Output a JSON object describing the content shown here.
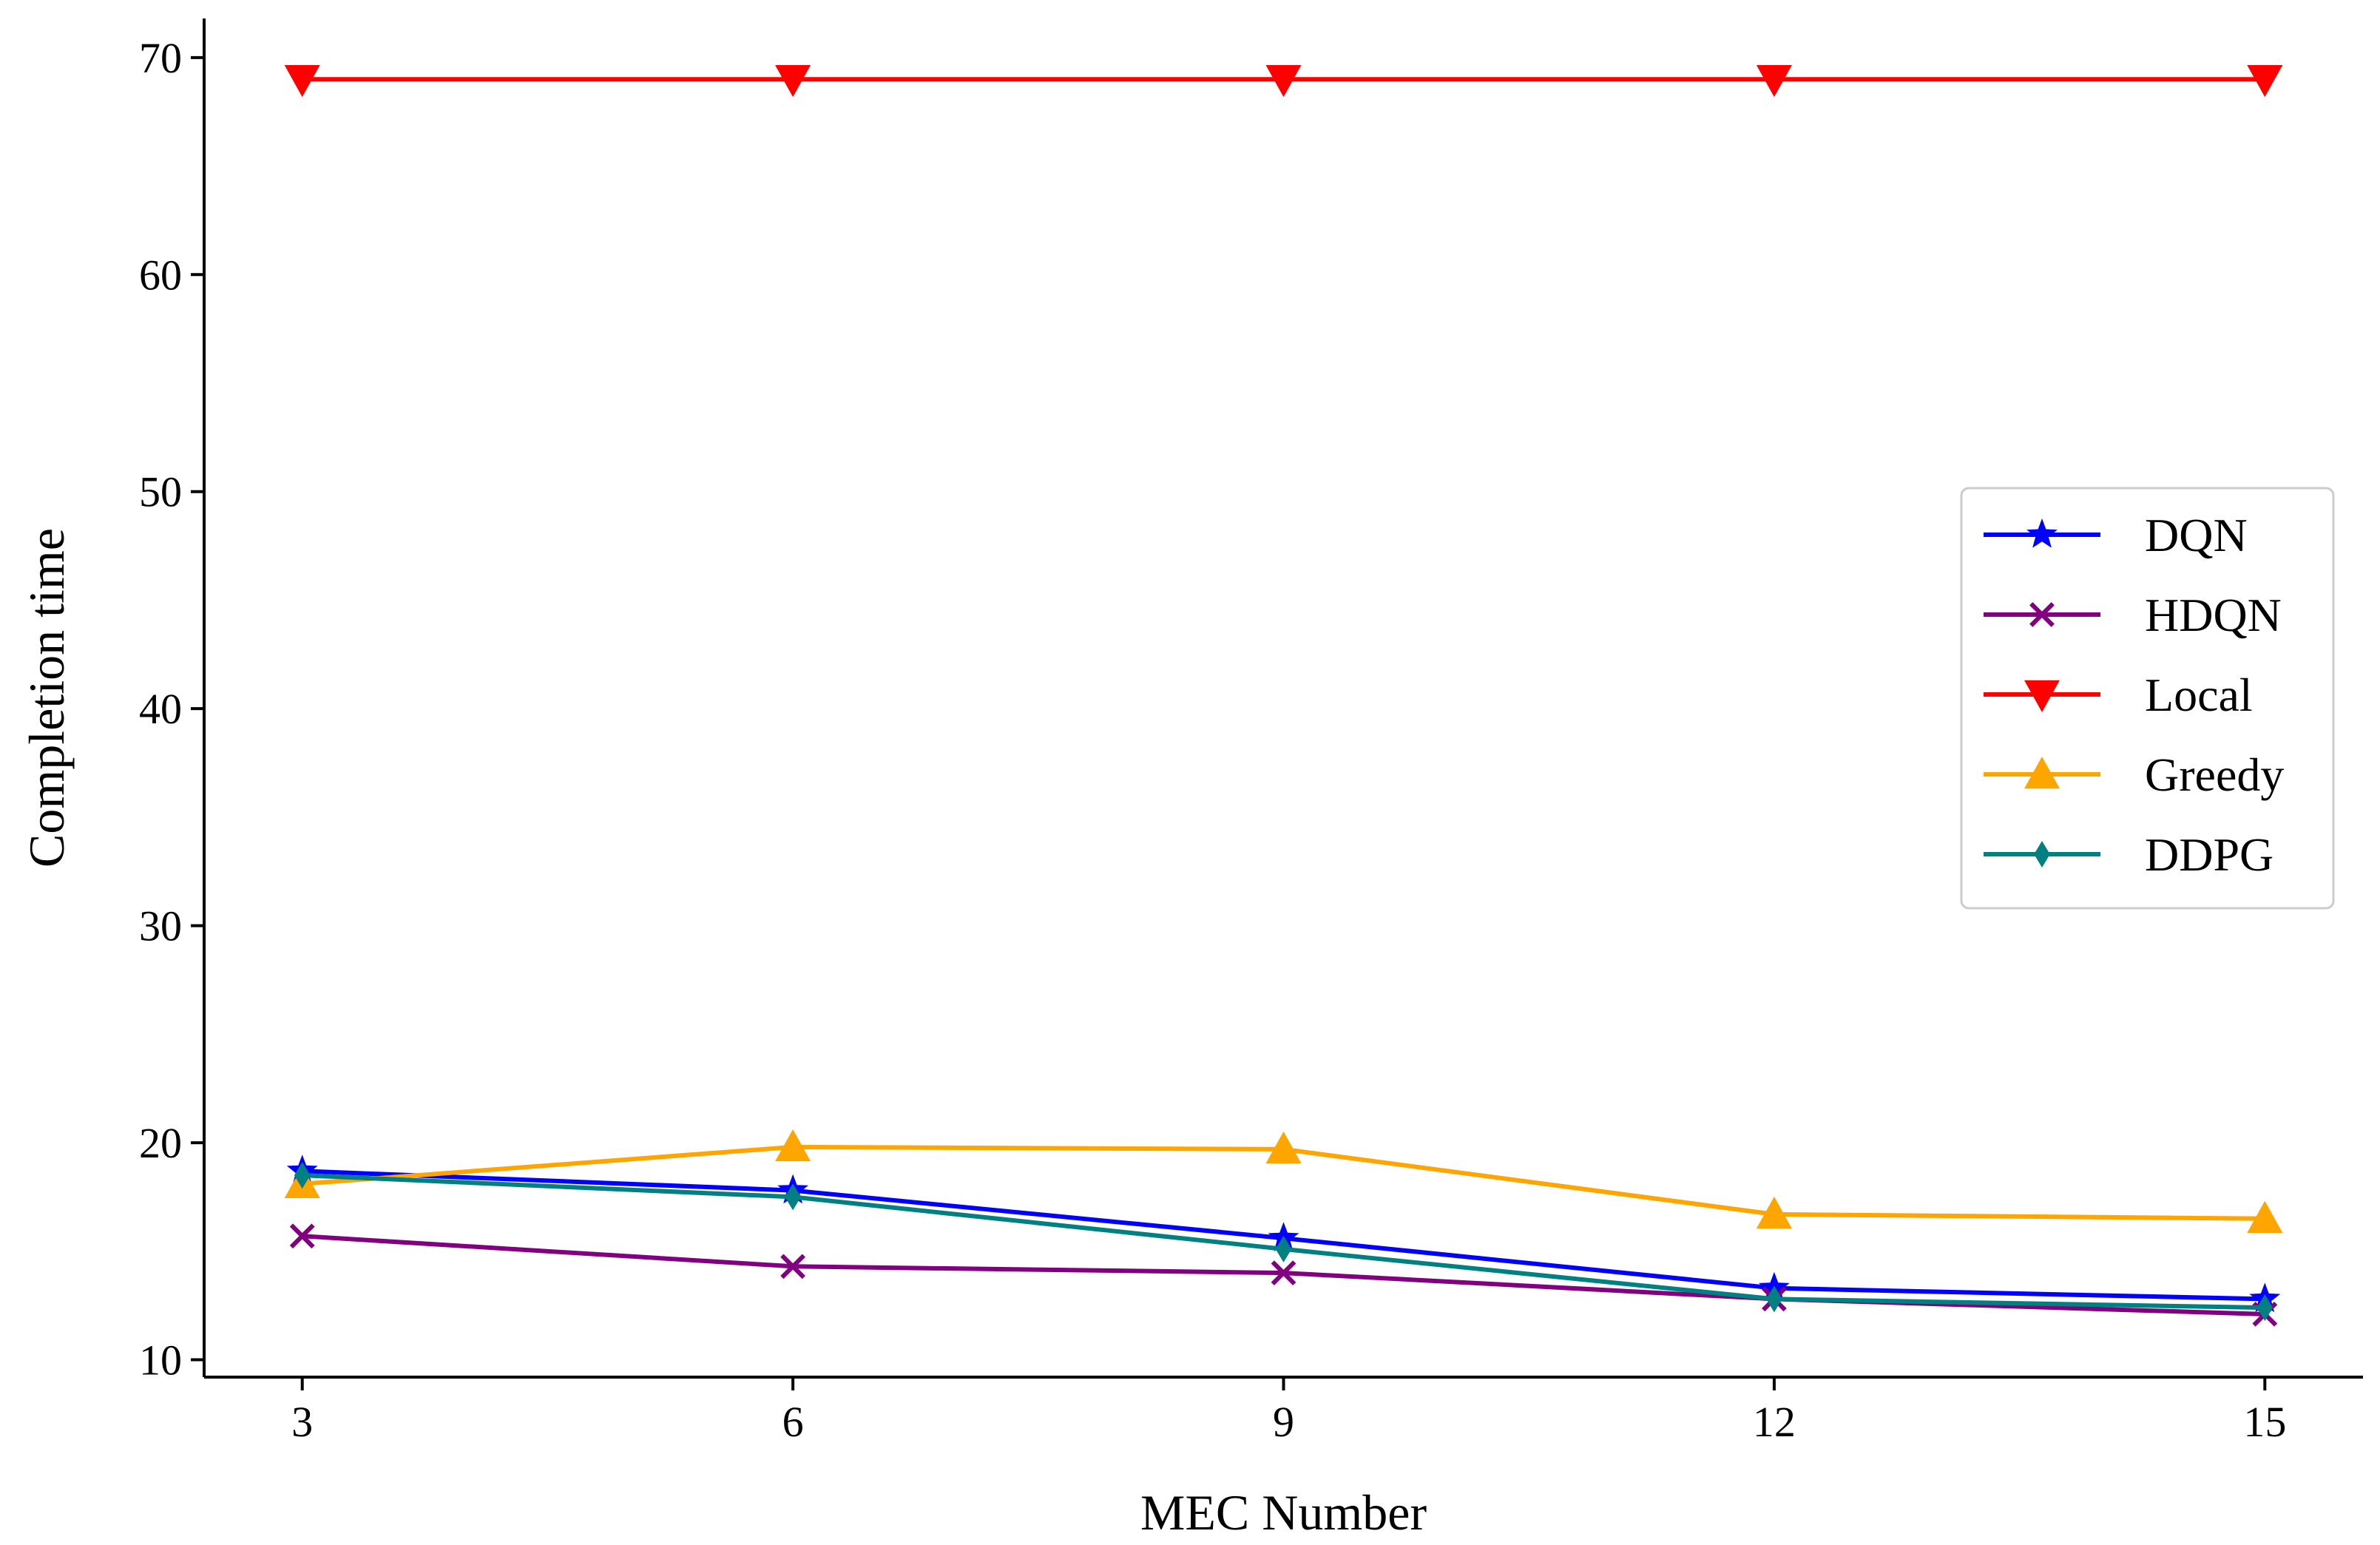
{
  "chart_data": {
    "type": "line",
    "title": "",
    "xlabel": "MEC Number",
    "ylabel": "Completion time",
    "x": [
      3,
      6,
      9,
      12,
      15
    ],
    "xticks": [
      "3",
      "6",
      "9",
      "12",
      "15"
    ],
    "yticks": [
      "10",
      "20",
      "30",
      "40",
      "50",
      "60",
      "70"
    ],
    "xlim": [
      2.4,
      15.6
    ],
    "ylim": [
      9.2,
      71.8
    ],
    "grid": false,
    "legend_position": "center-right",
    "series": [
      {
        "name": "DQN",
        "color": "#0000ff",
        "marker": "star",
        "values": [
          18.7,
          17.8,
          15.6,
          13.3,
          12.8
        ]
      },
      {
        "name": "HDQN",
        "color": "#800080",
        "marker": "x",
        "values": [
          15.7,
          14.3,
          14.0,
          12.8,
          12.1
        ]
      },
      {
        "name": "Local",
        "color": "#ff0000",
        "marker": "triangle-down",
        "values": [
          69.0,
          69.0,
          69.0,
          69.0,
          69.0
        ]
      },
      {
        "name": "Greedy",
        "color": "#ffa500",
        "marker": "triangle-up",
        "values": [
          18.1,
          19.8,
          19.7,
          16.7,
          16.5
        ]
      },
      {
        "name": "DDPG",
        "color": "#008080",
        "marker": "diamond",
        "values": [
          18.5,
          17.5,
          15.1,
          12.8,
          12.4
        ]
      }
    ]
  }
}
